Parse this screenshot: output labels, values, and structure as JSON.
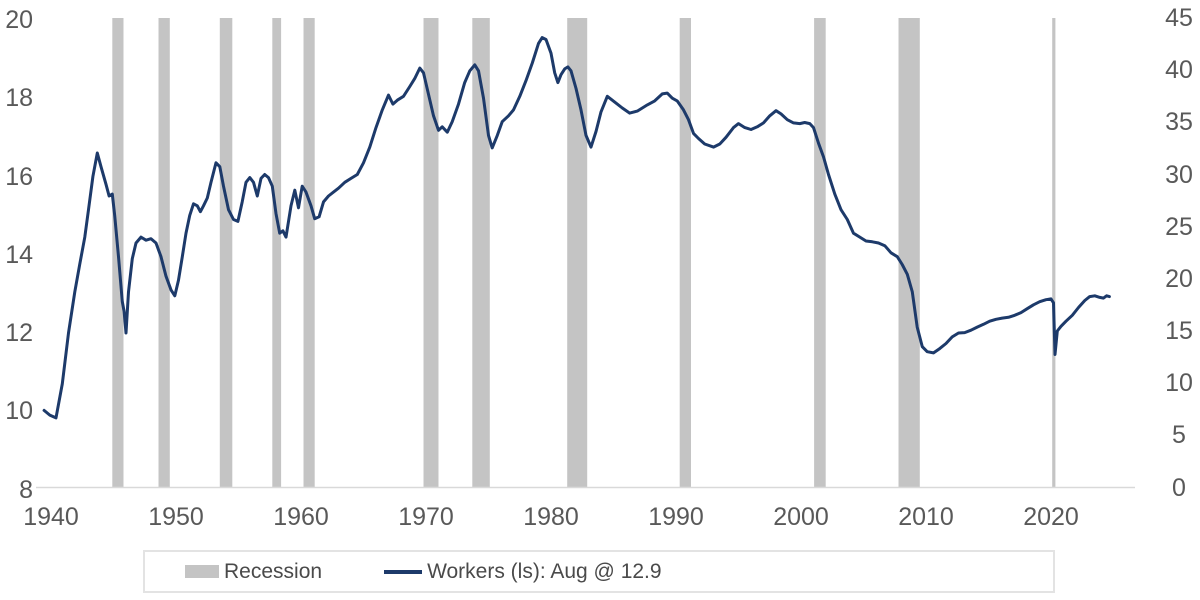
{
  "chart_data": {
    "type": "line",
    "title": "",
    "legend": {
      "recession": "Recession",
      "workers": "Workers (ls): Aug @ 12.9"
    },
    "legend_position": "bottom",
    "colors": {
      "line": "#1d3a6a",
      "recession": "#c4c4c4",
      "axis_line": "#d9d9d9",
      "tick_text": "#595959",
      "legend_text": "#4a4a4a",
      "legend_border": "#e3e3e3"
    },
    "axes": {
      "x": {
        "ticks": [
          1940,
          1950,
          1960,
          1970,
          1980,
          1990,
          2000,
          2010,
          2020
        ],
        "range": [
          1939,
          2026
        ],
        "gridlines": false
      },
      "y_left": {
        "ticks": [
          20,
          18,
          16,
          14,
          12,
          10,
          8
        ],
        "range": [
          8,
          20
        ]
      },
      "y_right": {
        "ticks": [
          45,
          40,
          35,
          30,
          25,
          20,
          15,
          10,
          5,
          0
        ],
        "range": [
          0,
          45
        ]
      }
    },
    "recessions": [
      [
        1944.9,
        1945.8
      ],
      [
        1948.6,
        1949.5
      ],
      [
        1953.5,
        1954.5
      ],
      [
        1957.7,
        1958.4
      ],
      [
        1960.2,
        1961.1
      ],
      [
        1969.8,
        1971.0
      ],
      [
        1973.7,
        1975.1
      ],
      [
        1981.3,
        1982.9
      ],
      [
        1990.3,
        1991.2
      ],
      [
        2001.05,
        2001.98
      ],
      [
        2007.8,
        2009.5
      ],
      [
        2020.1,
        2020.35
      ]
    ],
    "series": [
      {
        "name": "Workers (ls): Aug @ 12.9",
        "axis": "left",
        "color": "#1d3a6a",
        "last_point_label": "Aug @ 12.9",
        "points": [
          [
            1939.45,
            9.97
          ],
          [
            1939.9,
            9.85
          ],
          [
            1940.4,
            9.78
          ],
          [
            1940.9,
            10.65
          ],
          [
            1941.4,
            11.95
          ],
          [
            1941.9,
            13.0
          ],
          [
            1942.3,
            13.7
          ],
          [
            1942.7,
            14.4
          ],
          [
            1943.0,
            15.1
          ],
          [
            1943.35,
            15.95
          ],
          [
            1943.7,
            16.55
          ],
          [
            1944.0,
            16.2
          ],
          [
            1944.4,
            15.75
          ],
          [
            1944.65,
            15.45
          ],
          [
            1944.9,
            15.5
          ],
          [
            1945.1,
            14.95
          ],
          [
            1945.4,
            13.9
          ],
          [
            1945.7,
            12.75
          ],
          [
            1945.85,
            12.5
          ],
          [
            1946.0,
            11.95
          ],
          [
            1946.2,
            13.0
          ],
          [
            1946.5,
            13.85
          ],
          [
            1946.8,
            14.25
          ],
          [
            1947.2,
            14.4
          ],
          [
            1947.6,
            14.32
          ],
          [
            1948.0,
            14.36
          ],
          [
            1948.4,
            14.25
          ],
          [
            1948.8,
            13.9
          ],
          [
            1949.2,
            13.4
          ],
          [
            1949.6,
            13.05
          ],
          [
            1949.9,
            12.9
          ],
          [
            1950.2,
            13.3
          ],
          [
            1950.5,
            13.9
          ],
          [
            1950.8,
            14.5
          ],
          [
            1951.1,
            14.95
          ],
          [
            1951.4,
            15.25
          ],
          [
            1951.7,
            15.2
          ],
          [
            1951.95,
            15.05
          ],
          [
            1952.2,
            15.2
          ],
          [
            1952.5,
            15.4
          ],
          [
            1952.8,
            15.8
          ],
          [
            1953.2,
            16.3
          ],
          [
            1953.5,
            16.2
          ],
          [
            1953.8,
            15.7
          ],
          [
            1954.2,
            15.1
          ],
          [
            1954.6,
            14.85
          ],
          [
            1954.95,
            14.8
          ],
          [
            1955.3,
            15.3
          ],
          [
            1955.6,
            15.8
          ],
          [
            1955.9,
            15.92
          ],
          [
            1956.2,
            15.8
          ],
          [
            1956.5,
            15.45
          ],
          [
            1956.8,
            15.9
          ],
          [
            1957.1,
            16.0
          ],
          [
            1957.4,
            15.92
          ],
          [
            1957.7,
            15.7
          ],
          [
            1958.0,
            15.0
          ],
          [
            1958.3,
            14.5
          ],
          [
            1958.55,
            14.56
          ],
          [
            1958.8,
            14.4
          ],
          [
            1959.2,
            15.2
          ],
          [
            1959.5,
            15.6
          ],
          [
            1959.8,
            15.15
          ],
          [
            1960.1,
            15.7
          ],
          [
            1960.4,
            15.55
          ],
          [
            1960.8,
            15.2
          ],
          [
            1961.1,
            14.87
          ],
          [
            1961.45,
            14.92
          ],
          [
            1961.8,
            15.3
          ],
          [
            1962.2,
            15.45
          ],
          [
            1962.6,
            15.55
          ],
          [
            1963.0,
            15.65
          ],
          [
            1963.5,
            15.8
          ],
          [
            1964.0,
            15.9
          ],
          [
            1964.5,
            16.0
          ],
          [
            1965.0,
            16.3
          ],
          [
            1965.5,
            16.7
          ],
          [
            1966.0,
            17.2
          ],
          [
            1966.5,
            17.65
          ],
          [
            1967.0,
            18.03
          ],
          [
            1967.35,
            17.8
          ],
          [
            1967.7,
            17.9
          ],
          [
            1968.2,
            18.0
          ],
          [
            1968.7,
            18.25
          ],
          [
            1969.1,
            18.45
          ],
          [
            1969.5,
            18.72
          ],
          [
            1969.8,
            18.6
          ],
          [
            1970.2,
            18.05
          ],
          [
            1970.6,
            17.5
          ],
          [
            1971.0,
            17.13
          ],
          [
            1971.3,
            17.22
          ],
          [
            1971.7,
            17.08
          ],
          [
            1972.1,
            17.35
          ],
          [
            1972.6,
            17.8
          ],
          [
            1973.1,
            18.35
          ],
          [
            1973.5,
            18.65
          ],
          [
            1973.9,
            18.8
          ],
          [
            1974.2,
            18.65
          ],
          [
            1974.6,
            17.95
          ],
          [
            1975.0,
            17.0
          ],
          [
            1975.3,
            16.68
          ],
          [
            1975.7,
            17.0
          ],
          [
            1976.1,
            17.35
          ],
          [
            1976.6,
            17.5
          ],
          [
            1977.0,
            17.65
          ],
          [
            1977.5,
            18.0
          ],
          [
            1978.0,
            18.4
          ],
          [
            1978.5,
            18.85
          ],
          [
            1979.0,
            19.35
          ],
          [
            1979.3,
            19.5
          ],
          [
            1979.6,
            19.45
          ],
          [
            1980.0,
            19.1
          ],
          [
            1980.3,
            18.6
          ],
          [
            1980.55,
            18.35
          ],
          [
            1980.8,
            18.55
          ],
          [
            1981.1,
            18.7
          ],
          [
            1981.35,
            18.75
          ],
          [
            1981.6,
            18.65
          ],
          [
            1982.0,
            18.2
          ],
          [
            1982.4,
            17.65
          ],
          [
            1982.8,
            17.0
          ],
          [
            1983.2,
            16.7
          ],
          [
            1983.6,
            17.1
          ],
          [
            1984.0,
            17.6
          ],
          [
            1984.5,
            18.0
          ],
          [
            1985.1,
            17.85
          ],
          [
            1985.7,
            17.7
          ],
          [
            1986.3,
            17.57
          ],
          [
            1986.9,
            17.62
          ],
          [
            1987.7,
            17.78
          ],
          [
            1988.3,
            17.88
          ],
          [
            1988.9,
            18.06
          ],
          [
            1989.3,
            18.08
          ],
          [
            1989.7,
            17.95
          ],
          [
            1990.1,
            17.88
          ],
          [
            1990.6,
            17.65
          ],
          [
            1991.0,
            17.4
          ],
          [
            1991.4,
            17.05
          ],
          [
            1991.8,
            16.92
          ],
          [
            1992.3,
            16.78
          ],
          [
            1993.0,
            16.7
          ],
          [
            1993.5,
            16.78
          ],
          [
            1994.0,
            16.95
          ],
          [
            1994.6,
            17.2
          ],
          [
            1995.0,
            17.3
          ],
          [
            1995.5,
            17.2
          ],
          [
            1996.0,
            17.15
          ],
          [
            1996.5,
            17.22
          ],
          [
            1997.0,
            17.32
          ],
          [
            1997.5,
            17.5
          ],
          [
            1998.0,
            17.63
          ],
          [
            1998.4,
            17.55
          ],
          [
            1998.9,
            17.4
          ],
          [
            1999.4,
            17.32
          ],
          [
            1999.9,
            17.3
          ],
          [
            2000.3,
            17.33
          ],
          [
            2000.7,
            17.3
          ],
          [
            2001.0,
            17.2
          ],
          [
            2001.4,
            16.8
          ],
          [
            2001.8,
            16.45
          ],
          [
            2002.2,
            16.0
          ],
          [
            2002.7,
            15.5
          ],
          [
            2003.2,
            15.1
          ],
          [
            2003.7,
            14.85
          ],
          [
            2004.2,
            14.5
          ],
          [
            2004.7,
            14.4
          ],
          [
            2005.2,
            14.3
          ],
          [
            2005.7,
            14.28
          ],
          [
            2006.2,
            14.25
          ],
          [
            2006.7,
            14.18
          ],
          [
            2007.2,
            14.0
          ],
          [
            2007.7,
            13.9
          ],
          [
            2008.1,
            13.7
          ],
          [
            2008.5,
            13.45
          ],
          [
            2008.9,
            13.0
          ],
          [
            2009.3,
            12.1
          ],
          [
            2009.7,
            11.6
          ],
          [
            2010.1,
            11.47
          ],
          [
            2010.6,
            11.44
          ],
          [
            2011.1,
            11.55
          ],
          [
            2011.6,
            11.68
          ],
          [
            2012.1,
            11.85
          ],
          [
            2012.6,
            11.95
          ],
          [
            2013.1,
            11.96
          ],
          [
            2013.6,
            12.02
          ],
          [
            2014.1,
            12.1
          ],
          [
            2014.6,
            12.17
          ],
          [
            2015.1,
            12.25
          ],
          [
            2015.6,
            12.3
          ],
          [
            2016.1,
            12.33
          ],
          [
            2016.6,
            12.35
          ],
          [
            2017.1,
            12.4
          ],
          [
            2017.6,
            12.47
          ],
          [
            2018.1,
            12.57
          ],
          [
            2018.6,
            12.67
          ],
          [
            2019.1,
            12.75
          ],
          [
            2019.6,
            12.8
          ],
          [
            2020.0,
            12.82
          ],
          [
            2020.2,
            12.72
          ],
          [
            2020.32,
            11.4
          ],
          [
            2020.5,
            12.0
          ],
          [
            2020.8,
            12.12
          ],
          [
            2021.2,
            12.25
          ],
          [
            2021.7,
            12.4
          ],
          [
            2022.2,
            12.6
          ],
          [
            2022.7,
            12.78
          ],
          [
            2023.1,
            12.88
          ],
          [
            2023.5,
            12.9
          ],
          [
            2023.9,
            12.86
          ],
          [
            2024.2,
            12.84
          ],
          [
            2024.45,
            12.9
          ],
          [
            2024.67,
            12.88
          ]
        ]
      }
    ]
  }
}
